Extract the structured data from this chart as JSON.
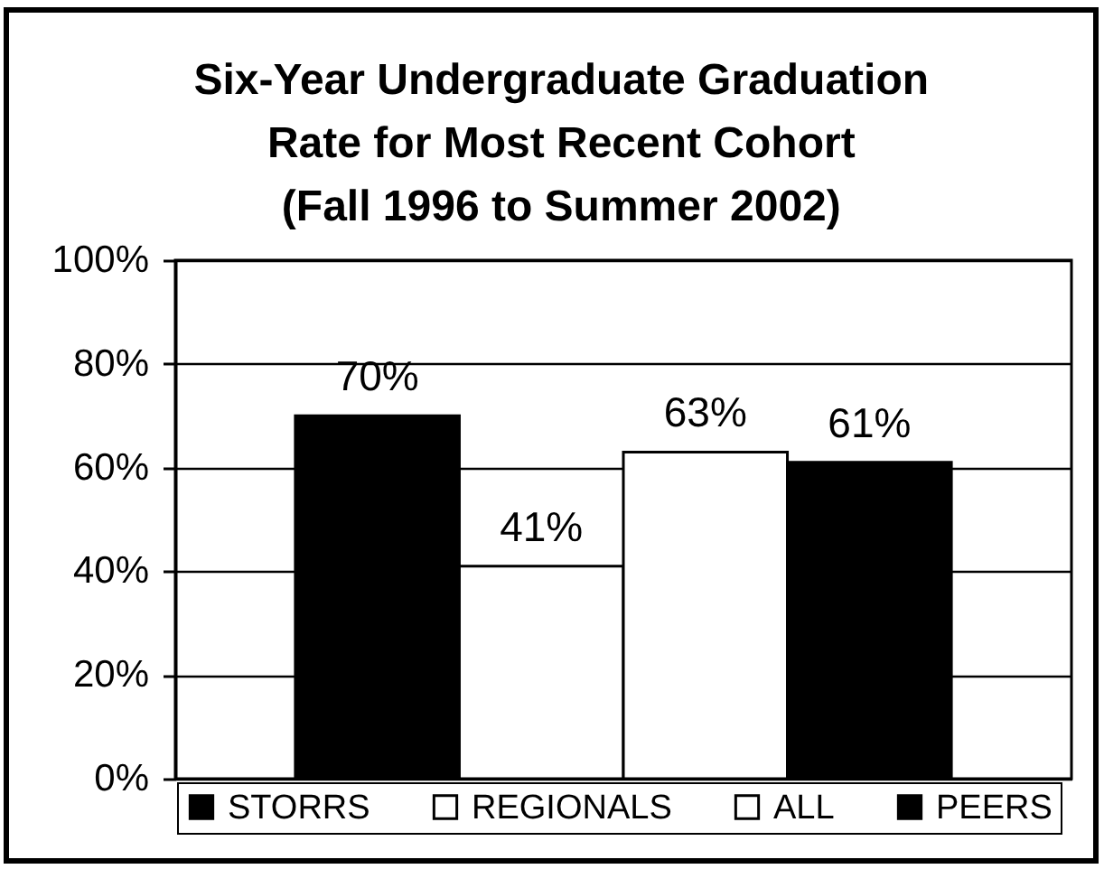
{
  "chart_data": {
    "type": "bar",
    "title": "Six-Year Undergraduate Graduation\nRate for Most Recent Cohort\n(Fall 1996 to Summer 2002)",
    "categories": [
      null
    ],
    "series": [
      {
        "name": "STORRS",
        "color": "#000000",
        "values": [
          70
        ],
        "value_labels": [
          "70%"
        ]
      },
      {
        "name": "REGIONALS",
        "color": "#ffffff",
        "values": [
          41
        ],
        "value_labels": [
          "41%"
        ]
      },
      {
        "name": "ALL",
        "color": "#ffffff",
        "values": [
          63
        ],
        "value_labels": [
          "63%"
        ]
      },
      {
        "name": "PEERS",
        "color": "#000000",
        "values": [
          61
        ],
        "value_labels": [
          "61%"
        ]
      }
    ],
    "ylim": [
      0,
      100
    ],
    "yticks": [
      {
        "value": 0,
        "label": "0%"
      },
      {
        "value": 20,
        "label": "20%"
      },
      {
        "value": 40,
        "label": "40%"
      },
      {
        "value": 60,
        "label": "60%"
      },
      {
        "value": 80,
        "label": "80%"
      },
      {
        "value": 100,
        "label": "100%"
      }
    ],
    "grid": "y",
    "legend": "bottom",
    "tick_labels": "y"
  }
}
